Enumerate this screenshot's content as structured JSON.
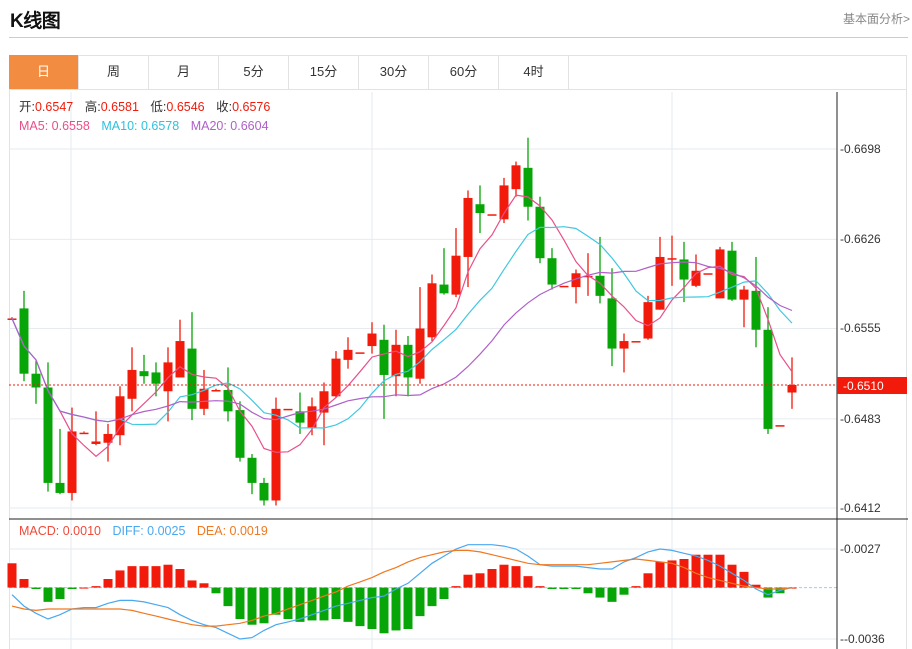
{
  "header": {
    "title": "K线图",
    "fundamental_link": "基本面分析>"
  },
  "tabs": [
    {
      "label": "日",
      "active": true
    },
    {
      "label": "周",
      "active": false
    },
    {
      "label": "月",
      "active": false
    },
    {
      "label": "5分",
      "active": false
    },
    {
      "label": "15分",
      "active": false
    },
    {
      "label": "30分",
      "active": false
    },
    {
      "label": "60分",
      "active": false
    },
    {
      "label": "4时",
      "active": false
    }
  ],
  "ohlc_info": {
    "open_label": "开:",
    "open": "0.6547",
    "high_label": "高:",
    "high": "0.6581",
    "low_label": "低:",
    "low": "0.6546",
    "close_label": "收:",
    "close": "0.6576"
  },
  "ma_info": {
    "ma5": "MA5: 0.6558",
    "ma10": "MA10: 0.6578",
    "ma20": "MA20: 0.6604"
  },
  "macd_info": {
    "macd": "MACD: 0.0010",
    "diff": "DIFF: 0.0025",
    "dea": "DEA: 0.0019"
  },
  "current_price": "0.6510",
  "colors": {
    "up": "#f21a0a",
    "down": "#08a508",
    "ma5": "#e8508a",
    "ma10": "#40c8e0",
    "ma20": "#b060c8",
    "diff": "#4aa8f0",
    "dea": "#f07820",
    "active_tab": "#f28c40"
  },
  "chart_data": [
    {
      "type": "candlestick",
      "y_ticks": [
        "0.6698",
        "0.6626",
        "0.6555",
        "0.6483",
        "0.6412"
      ],
      "ylim": [
        0.6412,
        0.6698
      ],
      "grid": true,
      "ohlc": [
        [
          0.6563,
          0.6564,
          0.6562,
          0.6563
        ],
        [
          0.6571,
          0.6585,
          0.6513,
          0.6519
        ],
        [
          0.6519,
          0.6529,
          0.6495,
          0.6508
        ],
        [
          0.6508,
          0.6528,
          0.6425,
          0.6432
        ],
        [
          0.6432,
          0.6475,
          0.6423,
          0.6424
        ],
        [
          0.6424,
          0.6492,
          0.6418,
          0.6473
        ],
        [
          0.6472,
          0.6473,
          0.6472,
          0.6472
        ],
        [
          0.6463,
          0.6489,
          0.6462,
          0.6465
        ],
        [
          0.6464,
          0.6479,
          0.6449,
          0.6471
        ],
        [
          0.647,
          0.6509,
          0.6462,
          0.6501
        ],
        [
          0.6499,
          0.654,
          0.6489,
          0.6522
        ],
        [
          0.6521,
          0.6534,
          0.6511,
          0.6517
        ],
        [
          0.652,
          0.6528,
          0.6501,
          0.6511
        ],
        [
          0.6505,
          0.654,
          0.6481,
          0.6528
        ],
        [
          0.6516,
          0.6562,
          0.6516,
          0.6545
        ],
        [
          0.6539,
          0.6568,
          0.6482,
          0.6491
        ],
        [
          0.6491,
          0.6522,
          0.6486,
          0.6507
        ],
        [
          0.6506,
          0.6507,
          0.6506,
          0.6506
        ],
        [
          0.6506,
          0.6524,
          0.6481,
          0.6489
        ],
        [
          0.649,
          0.6497,
          0.6449,
          0.6452
        ],
        [
          0.6452,
          0.6455,
          0.6423,
          0.6432
        ],
        [
          0.6432,
          0.6436,
          0.6414,
          0.6418
        ],
        [
          0.6418,
          0.65,
          0.6414,
          0.6491
        ],
        [
          0.6491,
          0.6491,
          0.6491,
          0.6491
        ],
        [
          0.6489,
          0.6504,
          0.6471,
          0.648
        ],
        [
          0.6476,
          0.65,
          0.647,
          0.6493
        ],
        [
          0.6488,
          0.6512,
          0.6462,
          0.6505
        ],
        [
          0.6501,
          0.6537,
          0.65,
          0.6531
        ],
        [
          0.653,
          0.6548,
          0.6523,
          0.6538
        ],
        [
          0.6536,
          0.6536,
          0.6536,
          0.6536
        ],
        [
          0.6541,
          0.656,
          0.6535,
          0.6551
        ],
        [
          0.6546,
          0.6558,
          0.6483,
          0.6518
        ],
        [
          0.6517,
          0.6554,
          0.6501,
          0.6542
        ],
        [
          0.6542,
          0.6549,
          0.6501,
          0.6516
        ],
        [
          0.6515,
          0.6588,
          0.6511,
          0.6555
        ],
        [
          0.6548,
          0.6598,
          0.6545,
          0.6591
        ],
        [
          0.659,
          0.6619,
          0.6582,
          0.6583
        ],
        [
          0.6582,
          0.6635,
          0.658,
          0.6613
        ],
        [
          0.6612,
          0.6665,
          0.6588,
          0.6659
        ],
        [
          0.6654,
          0.6669,
          0.6631,
          0.6647
        ],
        [
          0.6646,
          0.6646,
          0.6646,
          0.6646
        ],
        [
          0.6642,
          0.6675,
          0.6639,
          0.6669
        ],
        [
          0.6666,
          0.6688,
          0.666,
          0.6685
        ],
        [
          0.6683,
          0.6707,
          0.6641,
          0.6652
        ],
        [
          0.6652,
          0.666,
          0.6607,
          0.6611
        ],
        [
          0.6611,
          0.6619,
          0.6586,
          0.659
        ],
        [
          0.6589,
          0.6589,
          0.6589,
          0.6589
        ],
        [
          0.6588,
          0.6602,
          0.6575,
          0.6599
        ],
        [
          0.6597,
          0.6615,
          0.6581,
          0.6597
        ],
        [
          0.6597,
          0.6628,
          0.6575,
          0.6581
        ],
        [
          0.6579,
          0.6603,
          0.6525,
          0.6539
        ],
        [
          0.6539,
          0.6551,
          0.652,
          0.6545
        ],
        [
          0.6545,
          0.6545,
          0.6545,
          0.6545
        ],
        [
          0.6547,
          0.6581,
          0.6546,
          0.6576
        ],
        [
          0.657,
          0.6628,
          0.657,
          0.6612
        ],
        [
          0.6611,
          0.6629,
          0.6589,
          0.6611
        ],
        [
          0.661,
          0.6624,
          0.6576,
          0.6594
        ],
        [
          0.6589,
          0.6614,
          0.6588,
          0.6601
        ],
        [
          0.6599,
          0.6599,
          0.6599,
          0.6599
        ],
        [
          0.6579,
          0.662,
          0.6579,
          0.6618
        ],
        [
          0.6617,
          0.6624,
          0.6577,
          0.6578
        ],
        [
          0.6578,
          0.6589,
          0.6556,
          0.6586
        ],
        [
          0.6585,
          0.6612,
          0.654,
          0.6554
        ],
        [
          0.6554,
          0.6572,
          0.6471,
          0.6475
        ],
        [
          0.6478,
          0.6478,
          0.6478,
          0.6478
        ],
        [
          0.6504,
          0.6532,
          0.6491,
          0.651
        ]
      ],
      "moving_averages": [
        {
          "name": "MA5",
          "period": 5
        },
        {
          "name": "MA10",
          "period": 10
        },
        {
          "name": "MA20",
          "period": 20
        }
      ]
    },
    {
      "type": "bar+line",
      "y_ticks": [
        "0.0027",
        "-0.0036"
      ],
      "ylim": [
        -0.0036,
        0.0027
      ],
      "macd": [
        0.0017,
        0.0006,
        -0.0001,
        -0.001,
        -0.0008,
        -0.0001,
        0.0,
        0.0001,
        0.0006,
        0.0012,
        0.0015,
        0.0015,
        0.0015,
        0.0016,
        0.0013,
        0.0005,
        0.0003,
        -0.0004,
        -0.0013,
        -0.0022,
        -0.0026,
        -0.0025,
        -0.0019,
        -0.0022,
        -0.0024,
        -0.0023,
        -0.0023,
        -0.0022,
        -0.0024,
        -0.0027,
        -0.0029,
        -0.0032,
        -0.003,
        -0.0029,
        -0.002,
        -0.0013,
        -0.0008,
        0.0001,
        0.0009,
        0.001,
        0.0013,
        0.0016,
        0.0015,
        0.0008,
        0.0001,
        -0.0001,
        -0.0001,
        -0.0001,
        -0.0004,
        -0.0007,
        -0.001,
        -0.0005,
        0.0001,
        0.001,
        0.0018,
        0.0019,
        0.002,
        0.0023,
        0.0023,
        0.0023,
        0.0016,
        0.0011,
        0.0002,
        -0.0007,
        -0.0004,
        0.0
      ],
      "diff": [
        -0.0005,
        -0.0013,
        -0.0018,
        -0.0022,
        -0.0019,
        -0.0015,
        -0.0014,
        -0.0014,
        -0.0011,
        -0.0009,
        -0.0009,
        -0.001,
        -0.0012,
        -0.0014,
        -0.0019,
        -0.0023,
        -0.0026,
        -0.0028,
        -0.0032,
        -0.0036,
        -0.0035,
        -0.003,
        -0.0026,
        -0.0024,
        -0.0022,
        -0.0019,
        -0.0016,
        -0.0013,
        -0.0011,
        -0.0009,
        -0.0007,
        -0.0006,
        -0.0001,
        0.0003,
        0.001,
        0.0017,
        0.0022,
        0.0027,
        0.003,
        0.003,
        0.003,
        0.0029,
        0.0027,
        0.0022,
        0.0016,
        0.0015,
        0.0015,
        0.0015,
        0.0014,
        0.0013,
        0.0013,
        0.0018,
        0.0021,
        0.0025,
        0.0027,
        0.0026,
        0.0024,
        0.0022,
        0.0019,
        0.0015,
        0.001,
        0.0005,
        -0.0001,
        -0.0005,
        -0.0002,
        0.0
      ],
      "dea": [
        -0.0013,
        -0.0015,
        -0.0016,
        -0.0015,
        -0.0015,
        -0.0015,
        -0.0015,
        -0.0015,
        -0.0015,
        -0.0015,
        -0.0016,
        -0.0018,
        -0.002,
        -0.0022,
        -0.0024,
        -0.0026,
        -0.0027,
        -0.0027,
        -0.0026,
        -0.0025,
        -0.0023,
        -0.002,
        -0.0018,
        -0.0015,
        -0.0012,
        -0.0009,
        -0.0006,
        -0.0003,
        0.0001,
        0.0004,
        0.0007,
        0.0011,
        0.0014,
        0.0018,
        0.0021,
        0.0023,
        0.0025,
        0.0026,
        0.0026,
        0.0025,
        0.0023,
        0.0021,
        0.0019,
        0.0017,
        0.0016,
        0.0016,
        0.0016,
        0.0016,
        0.0016,
        0.0017,
        0.0018,
        0.0019,
        0.002,
        0.0019,
        0.0018,
        0.0017,
        0.0014,
        0.001,
        0.0007,
        0.0005,
        0.0003,
        0.0001,
        0.0,
        -0.0001,
        -0.0001,
        0.0
      ]
    }
  ]
}
